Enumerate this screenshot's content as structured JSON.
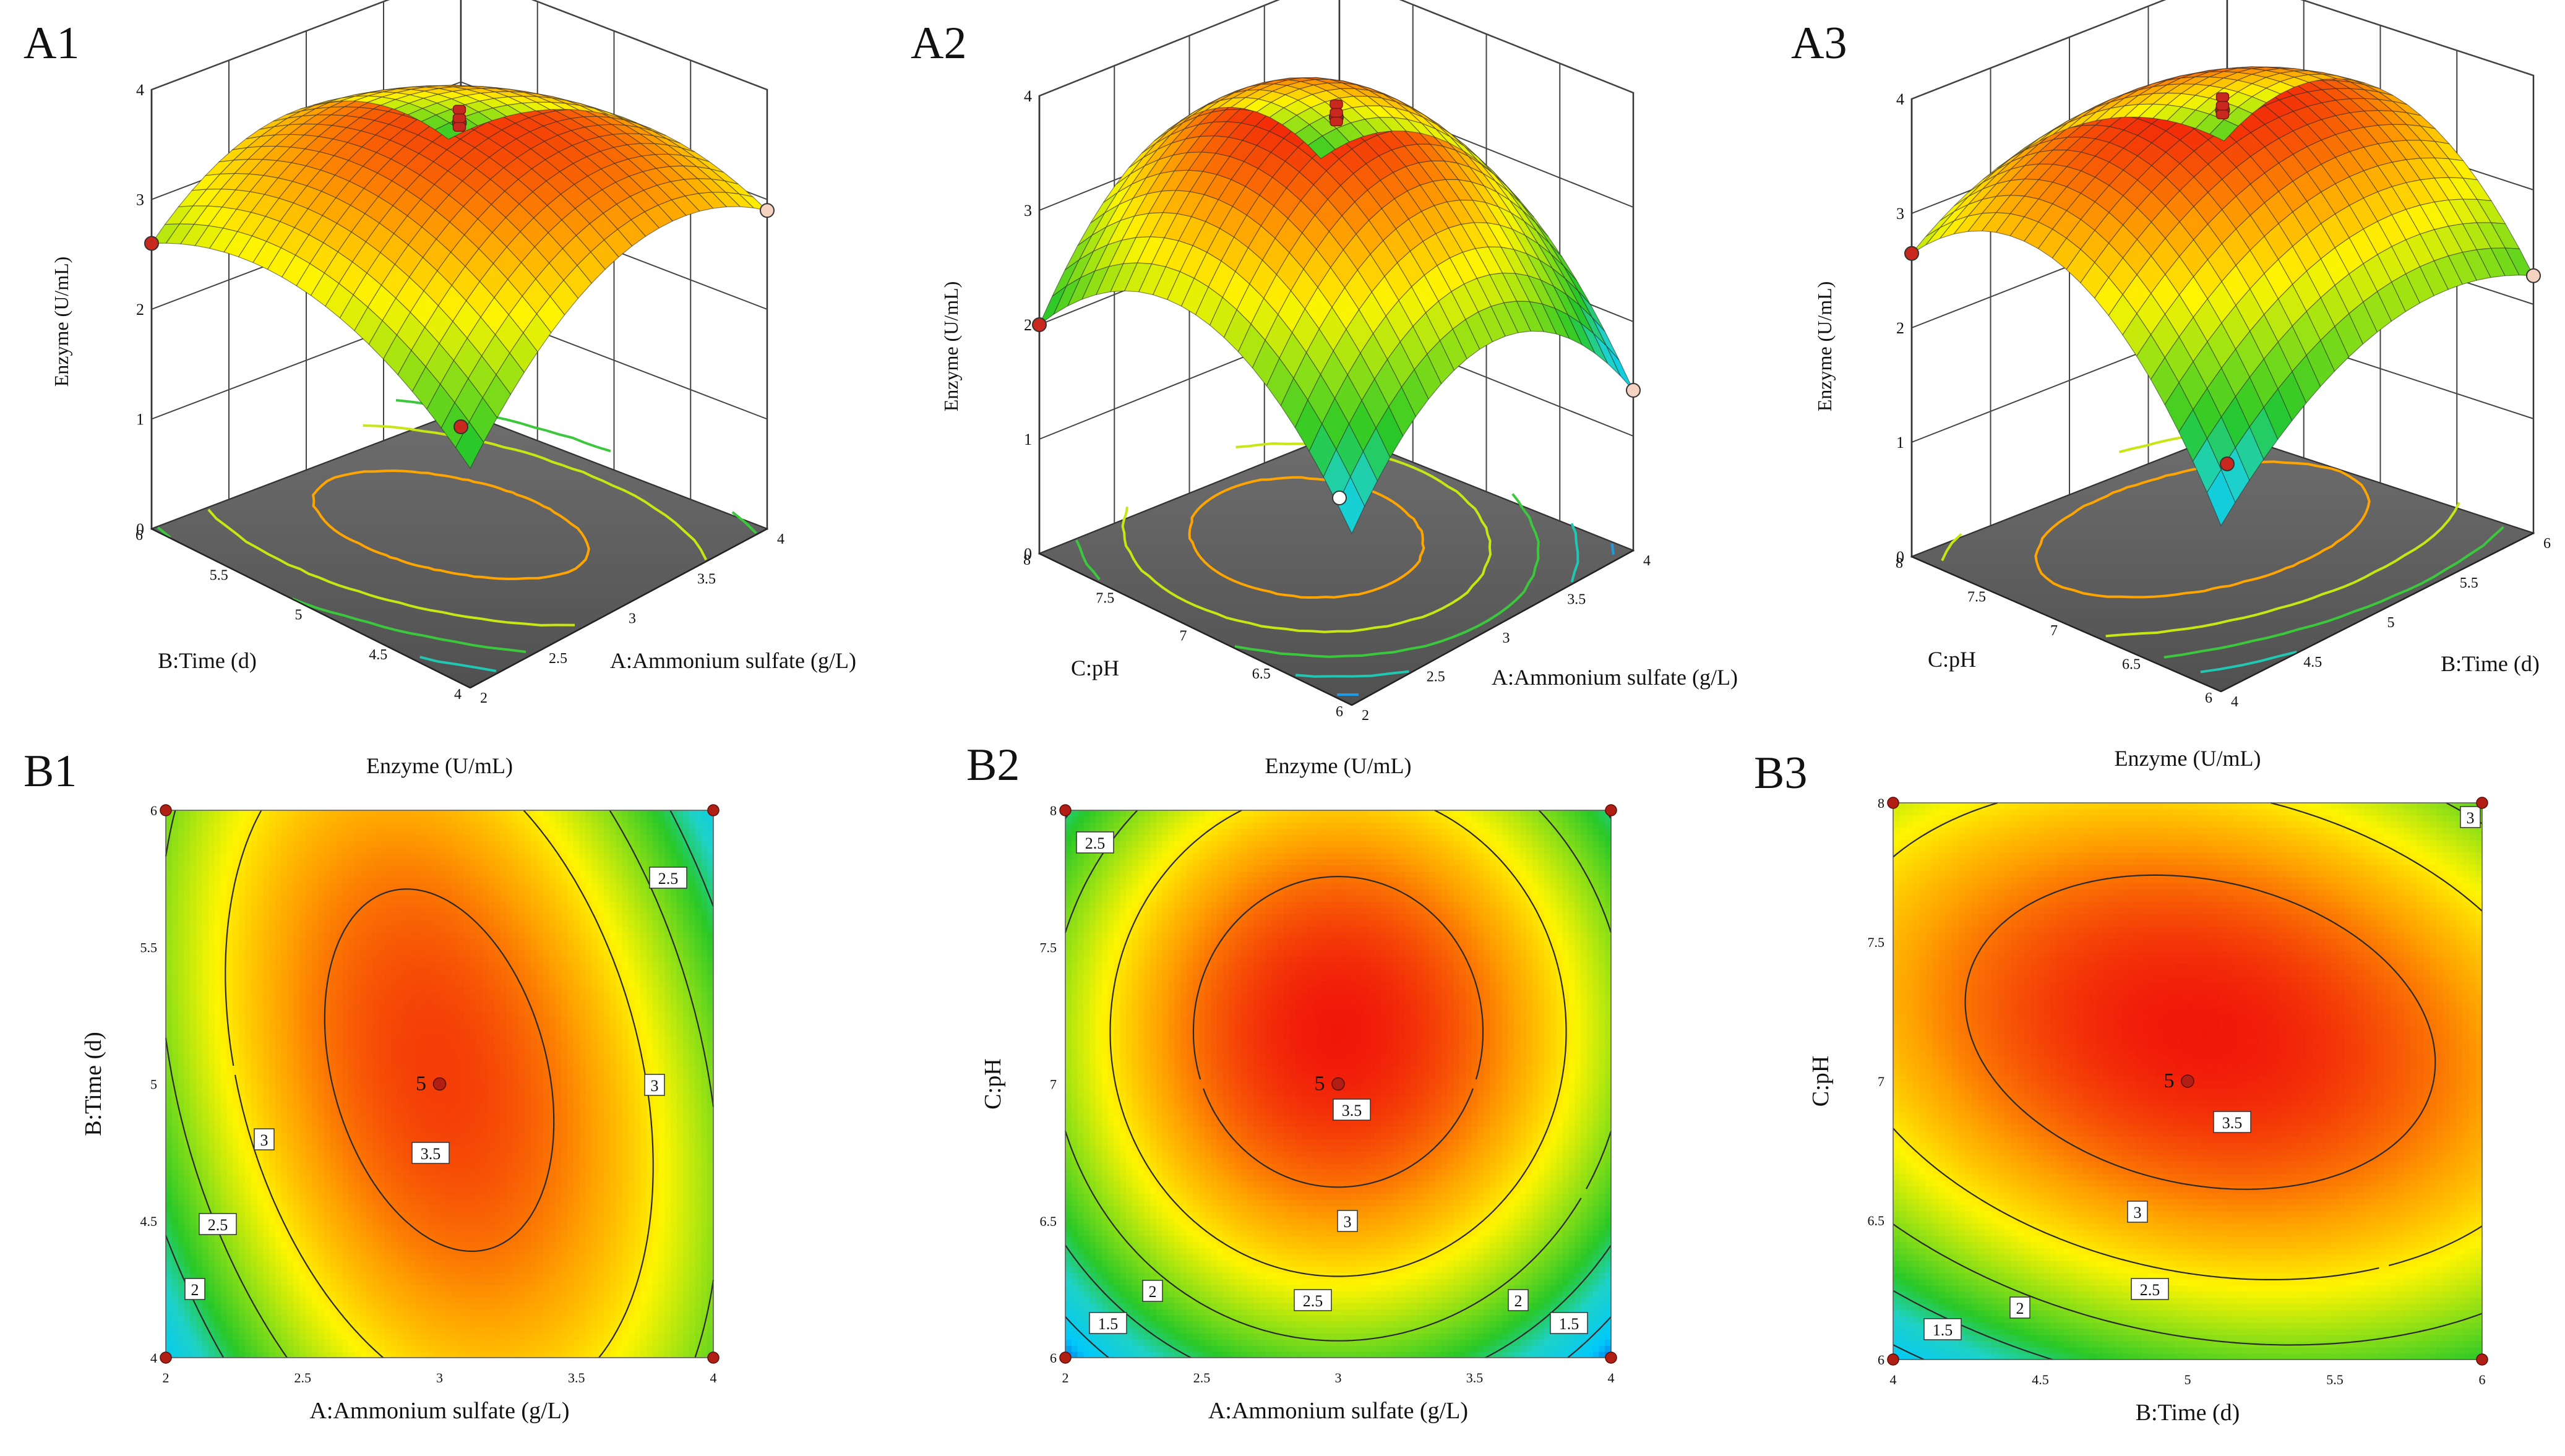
{
  "panels": {
    "A1": "A1",
    "A2": "A2",
    "A3": "A3",
    "B1": "B1",
    "B2": "B2",
    "B3": "B3"
  },
  "chart_data": [
    {
      "id": "A1",
      "type": "surface3d",
      "zlabel": "Enzyme (U/mL)",
      "xlabel": "A:Ammonium sulfate (g/L)",
      "ylabel": "B:Time (d)",
      "z_ticks": [
        "0",
        "1",
        "2",
        "3",
        "4"
      ],
      "x_ticks": [
        "2",
        "2.5",
        "3",
        "3.5",
        "4"
      ],
      "y_ticks": [
        "4",
        "4.5",
        "5",
        "5.5",
        "6"
      ],
      "xlim": [
        2,
        4
      ],
      "ylim": [
        4,
        6
      ],
      "zlim": [
        0,
        4
      ],
      "surface_max": 3.7
    },
    {
      "id": "A2",
      "type": "surface3d",
      "zlabel": "Enzyme (U/mL)",
      "xlabel": "A:Ammonium sulfate (g/L)",
      "ylabel": "C:pH",
      "z_ticks": [
        "0",
        "1",
        "2",
        "3",
        "4"
      ],
      "x_ticks": [
        "2",
        "2.5",
        "3",
        "3.5",
        "4"
      ],
      "y_ticks": [
        "6",
        "6.5",
        "7",
        "7.5",
        "8"
      ],
      "xlim": [
        2,
        4
      ],
      "ylim": [
        6,
        8
      ],
      "zlim": [
        0,
        4
      ],
      "surface_max": 3.8
    },
    {
      "id": "A3",
      "type": "surface3d",
      "zlabel": "Enzyme (U/mL)",
      "xlabel": "B:Time (d)",
      "ylabel": "C:pH",
      "z_ticks": [
        "0",
        "1",
        "2",
        "3",
        "4"
      ],
      "x_ticks": [
        "4",
        "4.5",
        "5",
        "5.5",
        "6"
      ],
      "y_ticks": [
        "6",
        "6.5",
        "7",
        "7.5",
        "8"
      ],
      "xlim": [
        4,
        6
      ],
      "ylim": [
        6,
        8
      ],
      "zlim": [
        0,
        4
      ],
      "surface_max": 3.8
    },
    {
      "id": "B1",
      "type": "contour",
      "title": "Enzyme (U/mL)",
      "xlabel": "A:Ammonium sulfate (g/L)",
      "ylabel": "B:Time (d)",
      "x_ticks": [
        "2",
        "2.5",
        "3",
        "3.5",
        "4"
      ],
      "y_ticks": [
        "4",
        "4.5",
        "5",
        "5.5",
        "6"
      ],
      "xlim": [
        2,
        4
      ],
      "ylim": [
        4,
        6
      ],
      "contour_levels": [
        "2",
        "2.5",
        "3",
        "3.5"
      ],
      "extra_labels": [
        "2.5",
        "3"
      ],
      "center_point": {
        "x": 3,
        "y": 5,
        "label": "5"
      },
      "design_points": [
        [
          2,
          4
        ],
        [
          4,
          4
        ],
        [
          2,
          6
        ],
        [
          4,
          6
        ]
      ]
    },
    {
      "id": "B2",
      "type": "contour",
      "title": "Enzyme (U/mL)",
      "xlabel": "A:Ammonium sulfate (g/L)",
      "ylabel": "C:pH",
      "x_ticks": [
        "2",
        "2.5",
        "3",
        "3.5",
        "4"
      ],
      "y_ticks": [
        "6",
        "6.5",
        "7",
        "7.5",
        "8"
      ],
      "xlim": [
        2,
        4
      ],
      "ylim": [
        6,
        8
      ],
      "contour_levels": [
        "1.5",
        "2",
        "2.5",
        "3",
        "3.5"
      ],
      "extra_labels": [
        "2.5",
        "2",
        "1.5"
      ],
      "center_point": {
        "x": 3,
        "y": 7,
        "label": "5"
      },
      "design_points": [
        [
          2,
          6
        ],
        [
          4,
          6
        ],
        [
          2,
          8
        ],
        [
          4,
          8
        ]
      ]
    },
    {
      "id": "B3",
      "type": "contour",
      "title": "Enzyme (U/mL)",
      "xlabel": "B:Time (d)",
      "ylabel": "C:pH",
      "x_ticks": [
        "4",
        "4.5",
        "5",
        "5.5",
        "6"
      ],
      "y_ticks": [
        "6",
        "6.5",
        "7",
        "7.5",
        "8"
      ],
      "xlim": [
        4,
        6
      ],
      "ylim": [
        6,
        8
      ],
      "contour_levels": [
        "1.5",
        "2",
        "2.5",
        "3",
        "3.5"
      ],
      "extra_labels": [
        "3"
      ],
      "center_point": {
        "x": 5,
        "y": 7,
        "label": "5"
      },
      "design_points": [
        [
          4,
          6
        ],
        [
          6,
          6
        ],
        [
          4,
          8
        ],
        [
          6,
          8
        ]
      ]
    }
  ]
}
